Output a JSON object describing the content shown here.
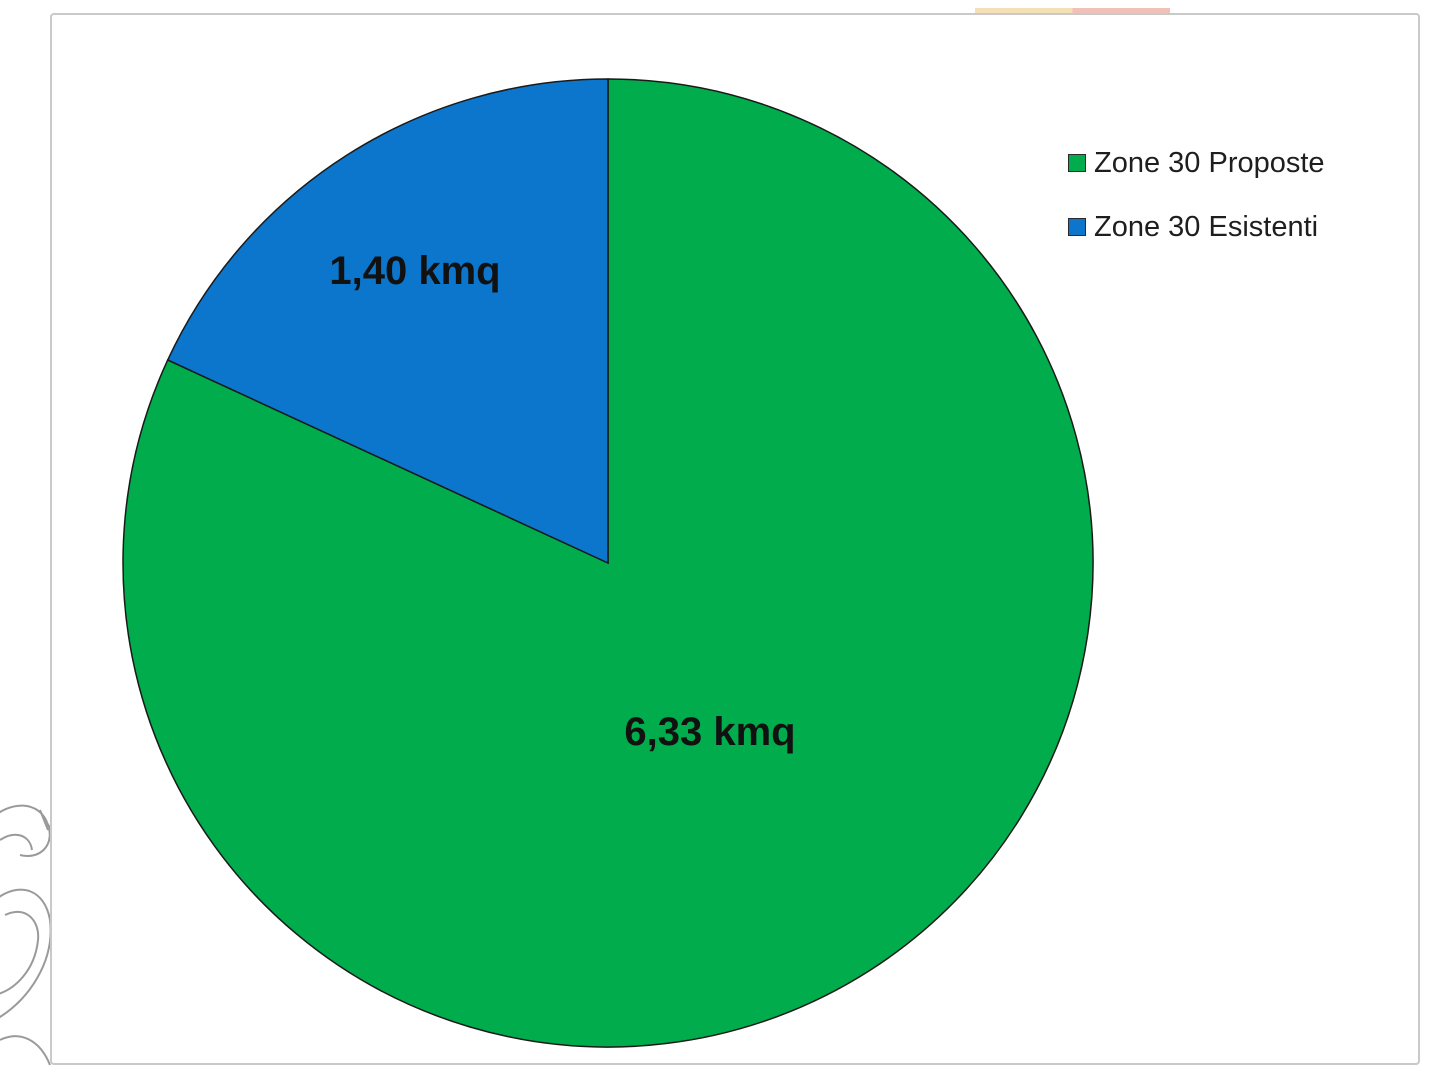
{
  "chart_data": {
    "type": "pie",
    "slices": [
      {
        "name": "Zone 30 Proposte",
        "value": 6.33,
        "label": "6,33 kmq",
        "color": "#00ac4b"
      },
      {
        "name": "Zone 30 Esistenti",
        "value": 1.4,
        "label": "1,40 kmq",
        "color": "#0b76cc"
      }
    ],
    "start_angle": "12 o'clock",
    "direction": "clockwise",
    "legend_placement": "top-right",
    "title": ""
  }
}
